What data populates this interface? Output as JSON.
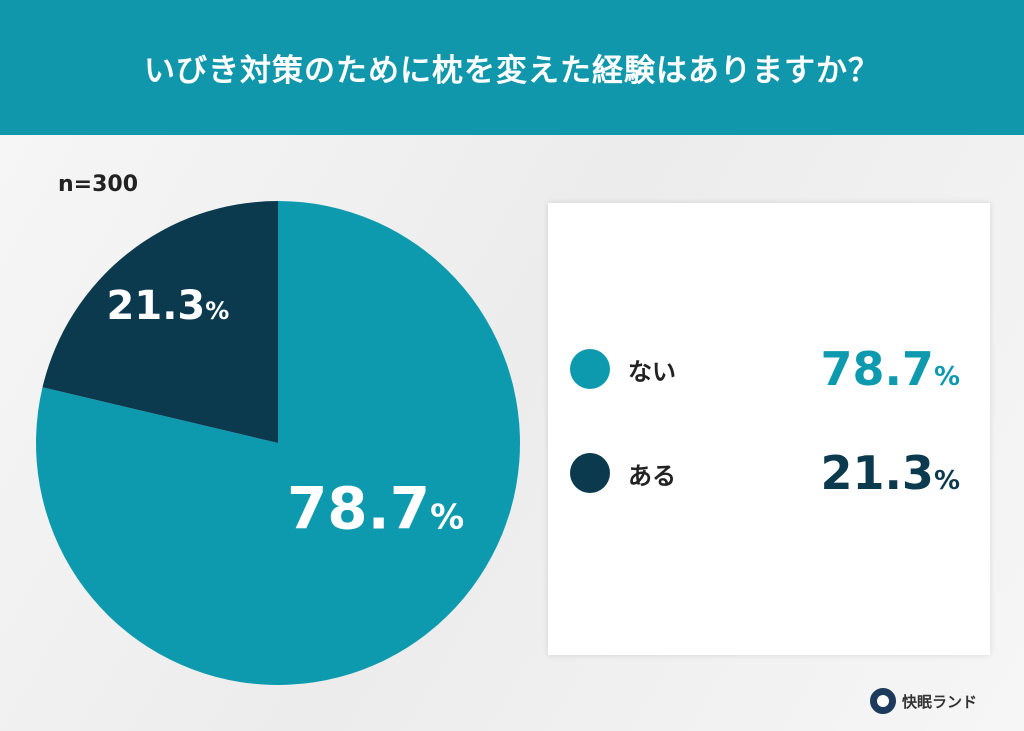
{
  "title": "いびき対策のために枕を変えた経験はありますか？",
  "sample": "n=300",
  "brand": "快眠ランド",
  "colors": {
    "header": "#1197ab",
    "teal": "#0e9aae",
    "dark": "#0b3a4f"
  },
  "chart_data": {
    "type": "pie",
    "title": "いびき対策のために枕を変えた経験はありますか？",
    "categories": [
      "ない",
      "ある"
    ],
    "values": [
      78.7,
      21.3
    ],
    "labels": [
      "78.7",
      "21.3"
    ],
    "unit": "%",
    "colors": [
      "#0e9aae",
      "#0b3a4f"
    ],
    "legend": "right"
  }
}
